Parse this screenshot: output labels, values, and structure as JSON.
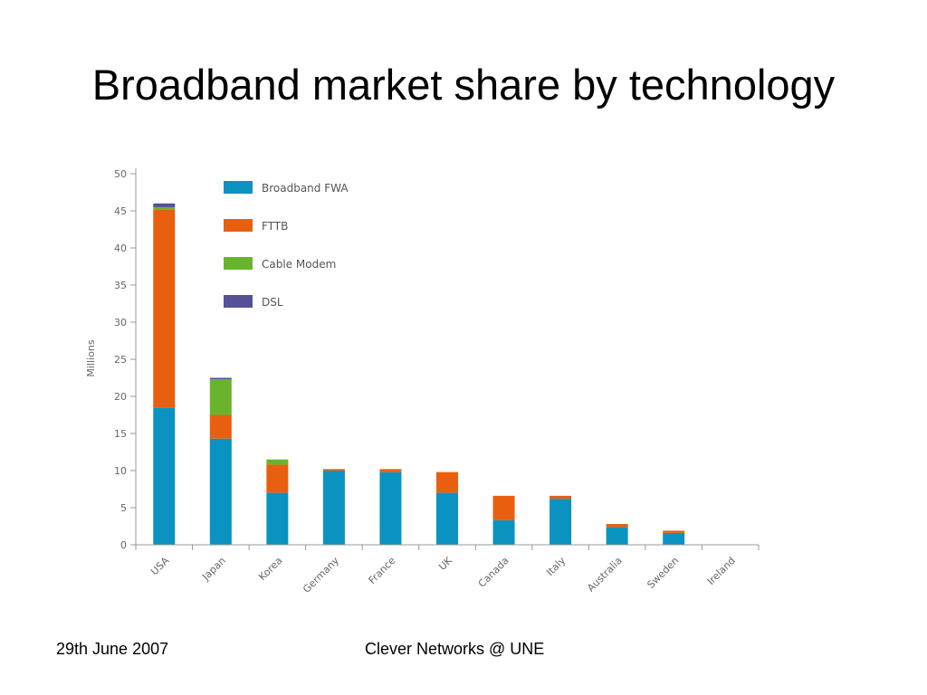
{
  "slide": {
    "title": "Broadband market share by technology",
    "footer_left": "29th June 2007",
    "footer_center": "Clever Networks @ UNE"
  },
  "chart_data": {
    "type": "bar",
    "stacked": true,
    "categories": [
      "USA",
      "Japan",
      "Korea",
      "Germany",
      "France",
      "UK",
      "Canada",
      "Italy",
      "Australia",
      "Sweden",
      "Ireland"
    ],
    "series": [
      {
        "name": "Broadband FWA",
        "color": "#0a93c0",
        "values": [
          18.5,
          14.3,
          7,
          10,
          9.8,
          7,
          3.3,
          6.2,
          2.4,
          1.6,
          0
        ]
      },
      {
        "name": "FTTB",
        "color": "#e8600f",
        "values": [
          26.7,
          3.2,
          3.8,
          0.2,
          0.4,
          2.8,
          3.3,
          0.4,
          0.4,
          0.3,
          0
        ]
      },
      {
        "name": "Cable Modem",
        "color": "#6ab42d",
        "values": [
          0.3,
          4.8,
          0.7,
          0,
          0,
          0,
          0,
          0,
          0,
          0,
          0
        ]
      },
      {
        "name": "DSL",
        "color": "#55509a",
        "values": [
          0.5,
          0.2,
          0,
          0,
          0,
          0,
          0,
          0,
          0,
          0,
          0
        ]
      }
    ],
    "ylabel": "Millions",
    "ylim": [
      0,
      50
    ],
    "yticks": [
      0,
      5,
      10,
      15,
      20,
      25,
      30,
      35,
      40,
      45,
      50
    ],
    "legend_position": "top-left",
    "grid": false
  }
}
